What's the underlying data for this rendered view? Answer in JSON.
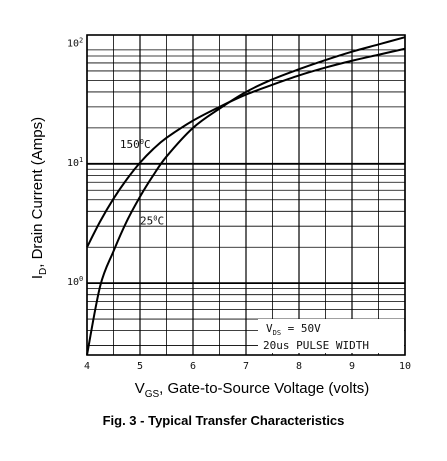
{
  "caption": "Fig. 3 - Typical Transfer Characteristics",
  "chart_data": {
    "type": "line",
    "xlabel": {
      "prefix": "V",
      "sub": "GS",
      "rest": ", Gate-to-Source Voltage (volts)"
    },
    "ylabel": {
      "prefix": "I",
      "sub": "D",
      "rest": ", Drain Current (Amps)"
    },
    "xlim": [
      4,
      10
    ],
    "ylim": [
      0.25,
      120
    ],
    "yscale": "log",
    "grid": true,
    "x_ticks": [
      "4",
      "5",
      "6",
      "7",
      "8",
      "9",
      "10"
    ],
    "y_ticks": [
      {
        "value": 1,
        "base": "10",
        "exp": "0"
      },
      {
        "value": 10,
        "base": "10",
        "exp": "1"
      },
      {
        "value": 100,
        "base": "10",
        "exp": "2"
      }
    ],
    "annotation": {
      "line1_prefix": "V",
      "line1_sub": "DS",
      "line1_rest": " = 50V",
      "line2": "20us PULSE WIDTH"
    },
    "series": [
      {
        "name": "150°C",
        "label_base": "150",
        "label_sup": "0",
        "label_unit": "C",
        "x": [
          4.0,
          4.25,
          4.5,
          4.75,
          5.0,
          5.25,
          5.5,
          6.0,
          6.5,
          7.0,
          7.5,
          8.0,
          8.5,
          9.0,
          9.5,
          10.0
        ],
        "y": [
          2.0,
          3.3,
          5.1,
          7.4,
          10.2,
          13.3,
          16.5,
          23,
          30,
          38,
          46,
          55,
          64,
          73,
          82,
          92
        ]
      },
      {
        "name": "25°C",
        "label_base": "25",
        "label_sup": "0",
        "label_unit": "C",
        "x": [
          4.0,
          4.25,
          4.5,
          4.75,
          5.0,
          5.25,
          5.5,
          6.0,
          6.5,
          7.0,
          7.5,
          8.0,
          8.5,
          9.0,
          9.5,
          10.0
        ],
        "y": [
          0.25,
          0.95,
          1.85,
          3.3,
          5.3,
          8.0,
          11.5,
          20,
          29,
          40,
          51,
          62,
          74,
          87,
          100,
          115
        ]
      }
    ]
  }
}
